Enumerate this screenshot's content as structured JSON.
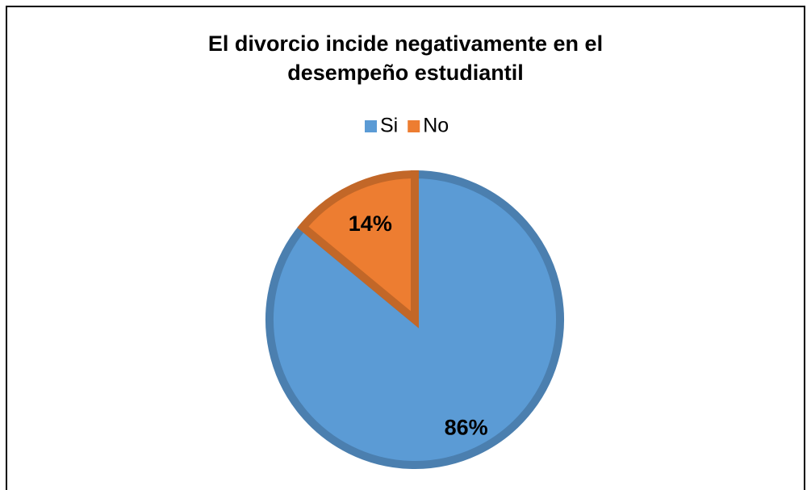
{
  "chart_data": {
    "type": "pie",
    "title": "El divorcio incide negativamente en el desempeño estudiantil",
    "categories": [
      "Si",
      "No"
    ],
    "values": [
      86,
      14
    ],
    "value_labels": [
      "86%",
      "14%"
    ],
    "colors": [
      "#5b9bd5",
      "#ed7d31"
    ],
    "legend": "top"
  }
}
